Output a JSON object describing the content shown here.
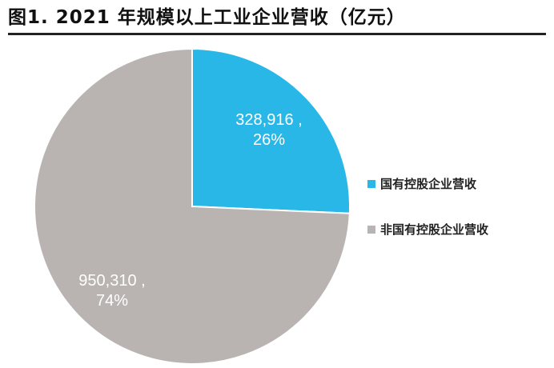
{
  "title": "图1. 2021 年规模以上工业企业营收（亿元）",
  "chart_data": {
    "type": "pie",
    "title": "图1. 2021 年规模以上工业企业营收（亿元）",
    "unit": "亿元",
    "series": [
      {
        "name": "国有控股企业营收",
        "value": 328916,
        "percent": 26,
        "label": [
          "328,916 ,",
          "26%"
        ],
        "color": "#29B7E8"
      },
      {
        "name": "非国有控股企业营收",
        "value": 950310,
        "percent": 74,
        "label": [
          "950,310 ,",
          "74%"
        ],
        "color": "#B9B4B2"
      }
    ],
    "start_angle_deg": 0,
    "direction": "clockwise",
    "legend_position": "right"
  }
}
